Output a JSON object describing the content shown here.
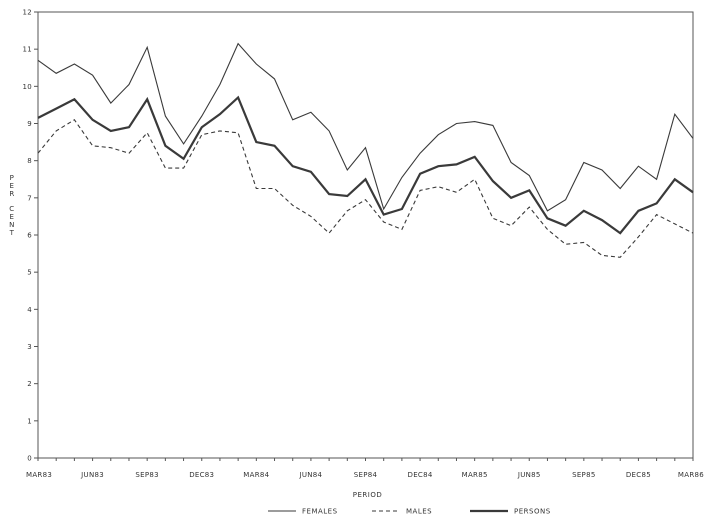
{
  "chart_data": {
    "type": "line",
    "xlabel": "PERIOD",
    "ylabel": "PER CENT",
    "ylim": [
      0,
      12
    ],
    "y_ticks": [
      "0",
      "1",
      "2",
      "3",
      "4",
      "5",
      "6",
      "7",
      "8",
      "9",
      "10",
      "11",
      "12"
    ],
    "x_tick_labels": [
      "MAR83",
      "JUN83",
      "SEP83",
      "DEC83",
      "MAR84",
      "JUN84",
      "SEP84",
      "DEC84",
      "MAR85",
      "JUN85",
      "SEP85",
      "DEC85",
      "MAR86"
    ],
    "grid": false,
    "legend_position": "bottom",
    "legend": [
      {
        "label": "FEMALES",
        "style": "thin-solid"
      },
      {
        "label": "MALES",
        "style": "dashed"
      },
      {
        "label": "PERSONS",
        "style": "thick-solid"
      }
    ],
    "series": [
      {
        "legend_label": "FEMALES",
        "style": "thin-solid",
        "values": [
          10.7,
          10.35,
          10.6,
          10.3,
          9.55,
          10.05,
          11.05,
          9.2,
          8.45,
          9.2,
          10.05,
          11.15,
          10.6,
          10.2,
          9.1,
          9.3,
          8.8,
          7.75,
          8.35,
          6.7,
          7.55,
          8.2,
          8.7,
          9.0,
          9.05,
          8.95,
          7.95,
          7.6,
          6.65,
          6.95,
          7.95,
          7.75,
          7.25,
          7.85,
          7.5,
          9.25,
          8.6
        ]
      },
      {
        "legend_label": "MALES",
        "style": "dashed",
        "values": [
          8.2,
          8.8,
          9.1,
          8.4,
          8.35,
          8.2,
          8.75,
          7.8,
          7.8,
          8.7,
          8.8,
          8.75,
          7.25,
          7.25,
          6.8,
          6.5,
          6.05,
          6.65,
          6.95,
          6.35,
          6.15,
          7.2,
          7.3,
          7.15,
          7.5,
          6.45,
          6.25,
          6.75,
          6.15,
          5.75,
          5.8,
          5.45,
          5.4,
          5.95,
          6.55,
          6.3,
          6.05
        ]
      },
      {
        "legend_label": "PERSONS",
        "style": "thick-solid",
        "values": [
          9.15,
          9.4,
          9.65,
          9.1,
          8.8,
          8.9,
          9.65,
          8.4,
          8.05,
          8.9,
          9.25,
          9.7,
          8.5,
          8.4,
          7.85,
          7.7,
          7.1,
          7.05,
          7.5,
          6.55,
          6.7,
          7.65,
          7.85,
          7.9,
          8.1,
          7.45,
          7.0,
          7.2,
          6.45,
          6.25,
          6.65,
          6.4,
          6.05,
          6.65,
          6.85,
          7.5,
          7.15
        ]
      }
    ]
  }
}
